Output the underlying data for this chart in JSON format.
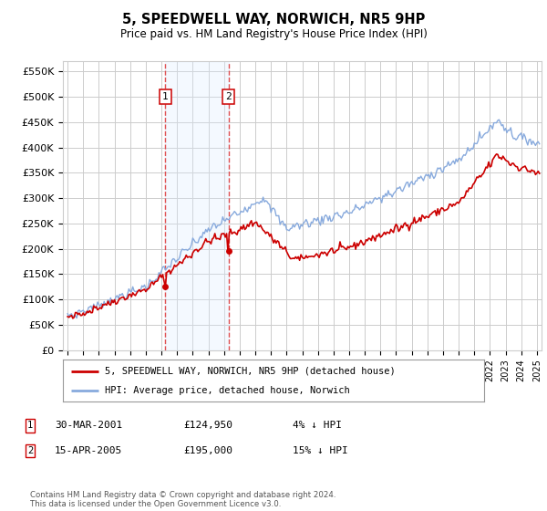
{
  "title": "5, SPEEDWELL WAY, NORWICH, NR5 9HP",
  "subtitle": "Price paid vs. HM Land Registry's House Price Index (HPI)",
  "ylabel_ticks": [
    "£0",
    "£50K",
    "£100K",
    "£150K",
    "£200K",
    "£250K",
    "£300K",
    "£350K",
    "£400K",
    "£450K",
    "£500K",
    "£550K"
  ],
  "ylabel_values": [
    0,
    50000,
    100000,
    150000,
    200000,
    250000,
    300000,
    350000,
    400000,
    450000,
    500000,
    550000
  ],
  "ylim": [
    0,
    570000
  ],
  "xlim_start": 1994.7,
  "xlim_end": 2025.3,
  "purchase1_x": 2001.24,
  "purchase1_y": 124950,
  "purchase2_x": 2005.29,
  "purchase2_y": 195000,
  "legend_house": "5, SPEEDWELL WAY, NORWICH, NR5 9HP (detached house)",
  "legend_hpi": "HPI: Average price, detached house, Norwich",
  "house_line_color": "#cc0000",
  "hpi_line_color": "#88aadd",
  "shade_color": "#ddeeff",
  "grid_color": "#cccccc",
  "vline_color": "#dd3333",
  "background_color": "#ffffff",
  "label_box_color": "#cc0000"
}
